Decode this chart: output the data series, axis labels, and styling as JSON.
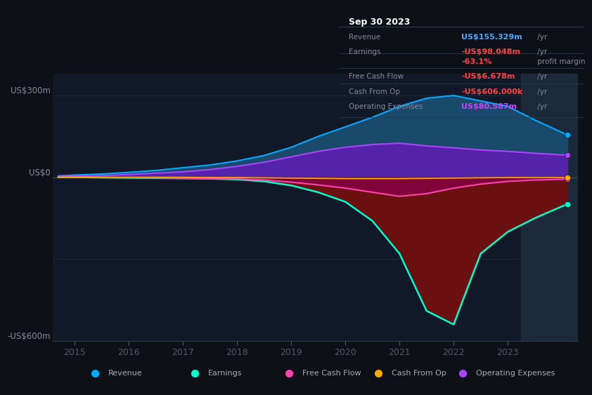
{
  "bg_color": "#0d1117",
  "plot_bg_color": "#111827",
  "title_box": {
    "date": "Sep 30 2023",
    "rows": [
      {
        "label": "Revenue",
        "value": "US$155.329m",
        "suffix": " /yr",
        "value_color": "#4da6ff"
      },
      {
        "label": "Earnings",
        "value": "-US$98.048m",
        "suffix": " /yr",
        "value_color": "#ff4444"
      },
      {
        "label": "",
        "value": "-63.1%",
        "suffix": " profit margin",
        "value_color": "#ff4444"
      },
      {
        "label": "Free Cash Flow",
        "value": "-US$6.678m",
        "suffix": " /yr",
        "value_color": "#ff4444"
      },
      {
        "label": "Cash From Op",
        "value": "-US$606.000k",
        "suffix": " /yr",
        "value_color": "#ff4444"
      },
      {
        "label": "Operating Expenses",
        "value": "US$80.587m",
        "suffix": " /yr",
        "value_color": "#cc44ff"
      }
    ]
  },
  "ylim": [
    -600,
    380
  ],
  "yticks": [
    -600,
    -300,
    0,
    300
  ],
  "ytick_labels": [
    "-US$600m",
    "",
    "US$0",
    "US$300m"
  ],
  "xlim": [
    2014.6,
    2024.3
  ],
  "xticks": [
    2015,
    2016,
    2017,
    2018,
    2019,
    2020,
    2021,
    2022,
    2023
  ],
  "years": [
    2014.7,
    2015.0,
    2015.5,
    2016.0,
    2016.5,
    2017.0,
    2017.5,
    2018.0,
    2018.5,
    2019.0,
    2019.5,
    2020.0,
    2020.5,
    2021.0,
    2021.5,
    2022.0,
    2022.5,
    2023.0,
    2023.5,
    2024.1
  ],
  "revenue": [
    5,
    8,
    12,
    18,
    25,
    35,
    45,
    60,
    80,
    110,
    150,
    185,
    220,
    260,
    290,
    300,
    280,
    260,
    210,
    155
  ],
  "earnings": [
    0,
    0,
    -1,
    -2,
    -3,
    -4,
    -5,
    -8,
    -15,
    -30,
    -55,
    -90,
    -160,
    -280,
    -490,
    -540,
    -280,
    -200,
    -150,
    -98
  ],
  "free_cash": [
    0,
    0,
    -1,
    -1,
    -2,
    -3,
    -4,
    -6,
    -10,
    -18,
    -28,
    -40,
    -55,
    -70,
    -60,
    -40,
    -25,
    -15,
    -10,
    -7
  ],
  "cash_from_op": [
    0,
    0,
    0,
    0,
    0,
    0,
    -1,
    -1,
    -2,
    -3,
    -4,
    -5,
    -5,
    -5,
    -4,
    -3,
    -2,
    -1,
    -1,
    -1
  ],
  "op_expenses": [
    3,
    4,
    6,
    10,
    15,
    20,
    28,
    40,
    55,
    75,
    95,
    110,
    120,
    125,
    115,
    108,
    100,
    95,
    88,
    81
  ],
  "colors": {
    "revenue": "#00aaff",
    "earnings": "#00ffcc",
    "free_cash": "#ff44aa",
    "cash_from_op": "#ffaa00",
    "op_expenses": "#aa44ff"
  },
  "fill_colors": {
    "revenue_pos": "#1a4a6b",
    "op_expenses": "#5522aa",
    "earnings_neg": "#6b1010",
    "free_cash_neg": "#880044"
  },
  "legend": [
    {
      "label": "Revenue",
      "color": "#00aaff"
    },
    {
      "label": "Earnings",
      "color": "#00ffcc"
    },
    {
      "label": "Free Cash Flow",
      "color": "#ff44aa"
    },
    {
      "label": "Cash From Op",
      "color": "#ffaa00"
    },
    {
      "label": "Operating Expenses",
      "color": "#aa44ff"
    }
  ],
  "highlight_x_start": 2023.25,
  "highlight_x_end": 2024.3,
  "dot_values": {
    "revenue": 155,
    "op_expenses": 81,
    "free_cash": -7,
    "cash_from_op": -1,
    "earnings": -98
  }
}
